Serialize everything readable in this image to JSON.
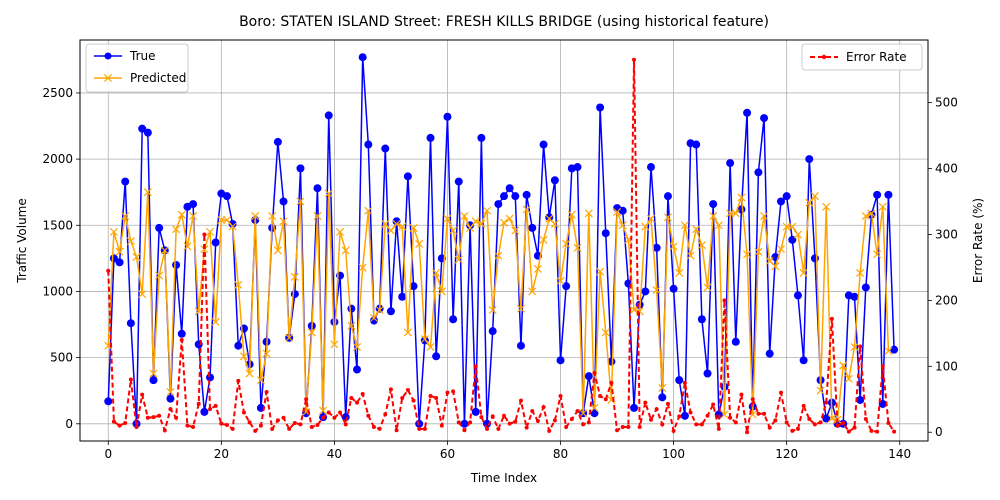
{
  "chart_data": {
    "type": "line",
    "title": "Boro: STATEN ISLAND Street: FRESH KILLS BRIDGE (using historical feature)",
    "xlabel": "Time Index",
    "ylabel": "Traffic Volume",
    "y2label": "Error Rate (%)",
    "xlim": [
      -5,
      145
    ],
    "ylim": [
      -130,
      2900
    ],
    "y2lim": [
      -13.3,
      595
    ],
    "xticks": [
      0,
      20,
      40,
      60,
      80,
      100,
      120,
      140
    ],
    "yticks": [
      0,
      500,
      1000,
      1500,
      2000,
      2500
    ],
    "y2ticks": [
      0,
      100,
      200,
      300,
      400,
      500
    ],
    "grid": true,
    "legend_left": "top-left",
    "legend_right": "top-right",
    "series": [
      {
        "name": "True",
        "axis": "left",
        "color": "#0000ff",
        "values": [
          170,
          1250,
          1220,
          1830,
          760,
          0,
          2230,
          2200,
          330,
          1480,
          1310,
          190,
          1200,
          680,
          1640,
          1660,
          600,
          90,
          350,
          1370,
          1740,
          1720,
          1510,
          590,
          720,
          450,
          1540,
          120,
          620,
          1480,
          2130,
          1680,
          650,
          980,
          1930,
          80,
          740,
          1780,
          50,
          2330,
          770,
          1120,
          50,
          870,
          410,
          2770,
          2110,
          780,
          870,
          2080,
          850,
          1530,
          960,
          1870,
          1040,
          0,
          630,
          2160,
          510,
          1250,
          2320,
          790,
          1830,
          0,
          1500,
          90,
          2160,
          0,
          700,
          1660,
          1720,
          1780,
          1720,
          590,
          1730,
          1480,
          1270,
          2110,
          1560,
          1840,
          480,
          1040,
          1930,
          1940,
          80,
          360,
          80,
          2390,
          1440,
          470,
          1630,
          1610,
          1060,
          120,
          900,
          1000,
          1940,
          1330,
          200,
          1720,
          1020,
          330,
          60,
          2120,
          2110,
          790,
          380,
          1660,
          70,
          280,
          1970,
          620,
          1620,
          2350,
          130,
          1900,
          2310,
          530,
          1260,
          1680,
          1720,
          1390,
          970,
          480,
          2000,
          1250,
          330,
          40,
          160,
          0,
          0,
          970,
          960,
          180,
          1030,
          1580,
          1730,
          150,
          1730,
          560
        ]
      },
      {
        "name": "Predicted",
        "axis": "left",
        "color": "#ffa500",
        "values": [
          590,
          1450,
          1300,
          1570,
          1380,
          1260,
          980,
          1750,
          380,
          1120,
          1310,
          240,
          1470,
          1580,
          1340,
          1570,
          850,
          1320,
          1450,
          770,
          1540,
          1540,
          1490,
          1050,
          510,
          380,
          1570,
          330,
          530,
          1570,
          1310,
          1530,
          650,
          1110,
          1680,
          90,
          690,
          1570,
          100,
          1740,
          600,
          1450,
          1310,
          740,
          580,
          1180,
          1610,
          800,
          860,
          1510,
          1460,
          1510,
          1490,
          690,
          1480,
          1360,
          640,
          580,
          1140,
          1000,
          1550,
          1460,
          1240,
          1570,
          1480,
          1530,
          1510,
          1610,
          860,
          1270,
          1520,
          1550,
          1460,
          870,
          1620,
          1000,
          1170,
          1390,
          1550,
          1510,
          1080,
          1360,
          1580,
          1330,
          80,
          1590,
          120,
          1150,
          690,
          180,
          1600,
          1500,
          1390,
          860,
          850,
          1490,
          1550,
          1010,
          270,
          1560,
          1340,
          1140,
          1500,
          1270,
          1470,
          1350,
          1030,
          1570,
          1500,
          70,
          1590,
          1590,
          1710,
          1280,
          70,
          1300,
          1570,
          1230,
          1190,
          1320,
          1490,
          1490,
          1430,
          1140,
          1670,
          1720,
          250,
          1640,
          40,
          30,
          440,
          340,
          580,
          1140,
          1570,
          1590,
          1280,
          1640,
          550
        ]
      },
      {
        "name": "Error Rate",
        "axis": "right",
        "color": "#ff0000",
        "values": [
          245,
          16,
          10,
          14,
          80,
          8,
          57,
          22,
          23,
          25,
          3,
          35,
          22,
          140,
          10,
          8,
          43,
          300,
          35,
          40,
          13,
          11,
          5,
          78,
          30,
          15,
          2,
          10,
          61,
          5,
          18,
          22,
          5,
          14,
          12,
          50,
          8,
          11,
          22,
          30,
          22,
          30,
          12,
          52,
          45,
          58,
          25,
          8,
          5,
          27,
          65,
          3,
          52,
          64,
          48,
          5,
          5,
          55,
          52,
          10,
          60,
          62,
          15,
          3,
          15,
          100,
          23,
          5,
          24,
          5,
          25,
          13,
          16,
          48,
          7,
          32,
          17,
          38,
          2,
          18,
          55,
          8,
          20,
          32,
          12,
          15,
          90,
          55,
          50,
          75,
          3,
          8,
          8,
          565,
          8,
          45,
          19,
          35,
          12,
          43,
          2,
          24,
          75,
          30,
          12,
          12,
          25,
          42,
          5,
          200,
          22,
          15,
          57,
          0,
          50,
          28,
          28,
          7,
          18,
          60,
          15,
          2,
          5,
          40,
          20,
          12,
          15,
          45,
          172,
          10,
          14,
          1,
          7,
          130,
          20,
          2,
          1,
          100,
          14,
          1
        ]
      }
    ]
  }
}
